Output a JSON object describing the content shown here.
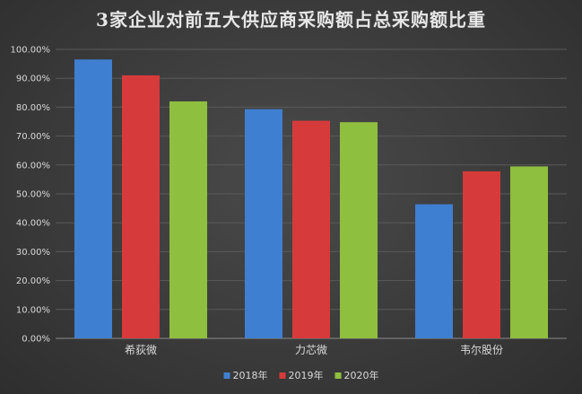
{
  "chart_data": {
    "type": "bar",
    "title": "3家企业对前五大供应商采购额占总采购额比重",
    "xlabel": "",
    "ylabel": "",
    "categories": [
      "希荻微",
      "力芯微",
      "韦尔股份"
    ],
    "series": [
      {
        "name": "2018年",
        "color": "#3f7fd1",
        "values": [
          96.5,
          79.3,
          46.4
        ]
      },
      {
        "name": "2019年",
        "color": "#d63a3a",
        "values": [
          91.0,
          75.3,
          57.8
        ]
      },
      {
        "name": "2020年",
        "color": "#8fbf3f",
        "values": [
          82.0,
          74.8,
          59.5
        ]
      }
    ],
    "ylim": [
      0,
      100
    ],
    "yticks": [
      0,
      10,
      20,
      30,
      40,
      50,
      60,
      70,
      80,
      90,
      100
    ],
    "ytick_labels": [
      "0.00%",
      "10.00%",
      "20.00%",
      "30.00%",
      "40.00%",
      "50.00%",
      "60.00%",
      "70.00%",
      "80.00%",
      "90.00%",
      "100.00%"
    ],
    "grid": true,
    "legend_position": "bottom"
  }
}
